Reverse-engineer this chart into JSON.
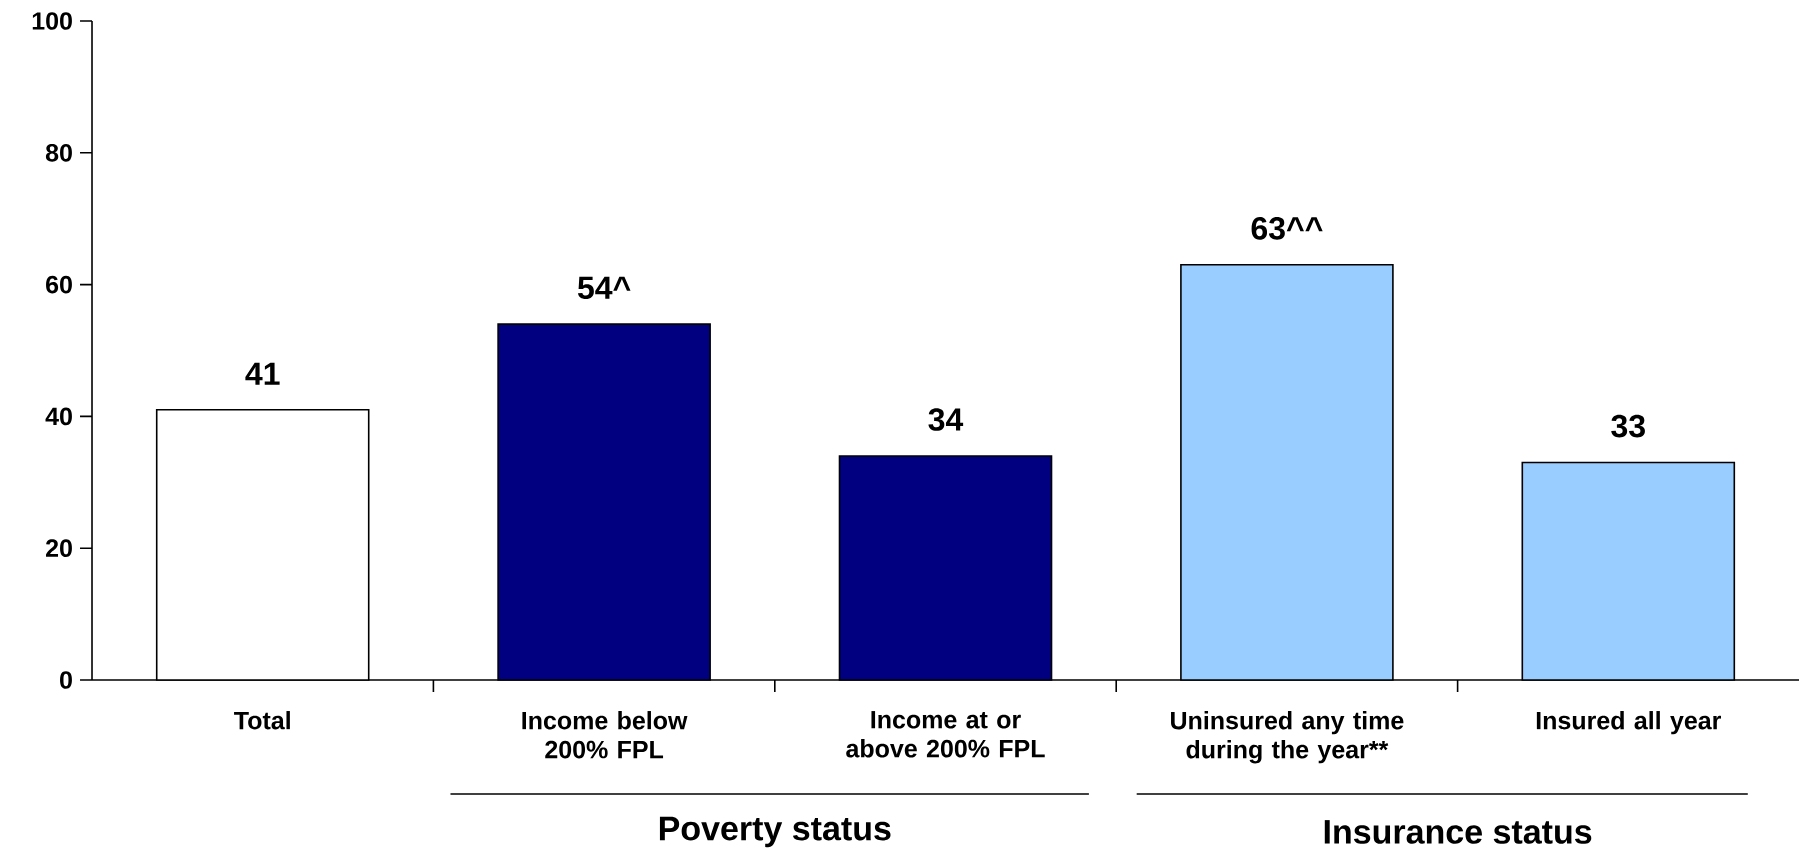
{
  "chart_data": {
    "type": "bar",
    "categories": [
      "Total",
      "Income below 200% FPL",
      "Income at or above 200% FPL",
      "Uninsured any time during the year**",
      "Insured all year"
    ],
    "values": [
      41,
      54,
      34,
      63,
      33
    ],
    "colors": [
      "#ffffff",
      "#000080",
      "#000080",
      "#99ccff",
      "#99ccff"
    ],
    "value_labels": [
      "41",
      "54^",
      "34",
      "63^^",
      "33"
    ],
    "ylim": [
      0,
      100
    ],
    "yticks": [
      0,
      20,
      40,
      60,
      80,
      100
    ],
    "annotations": [
      "Poverty status",
      "Insurance status"
    ],
    "grid": false
  }
}
